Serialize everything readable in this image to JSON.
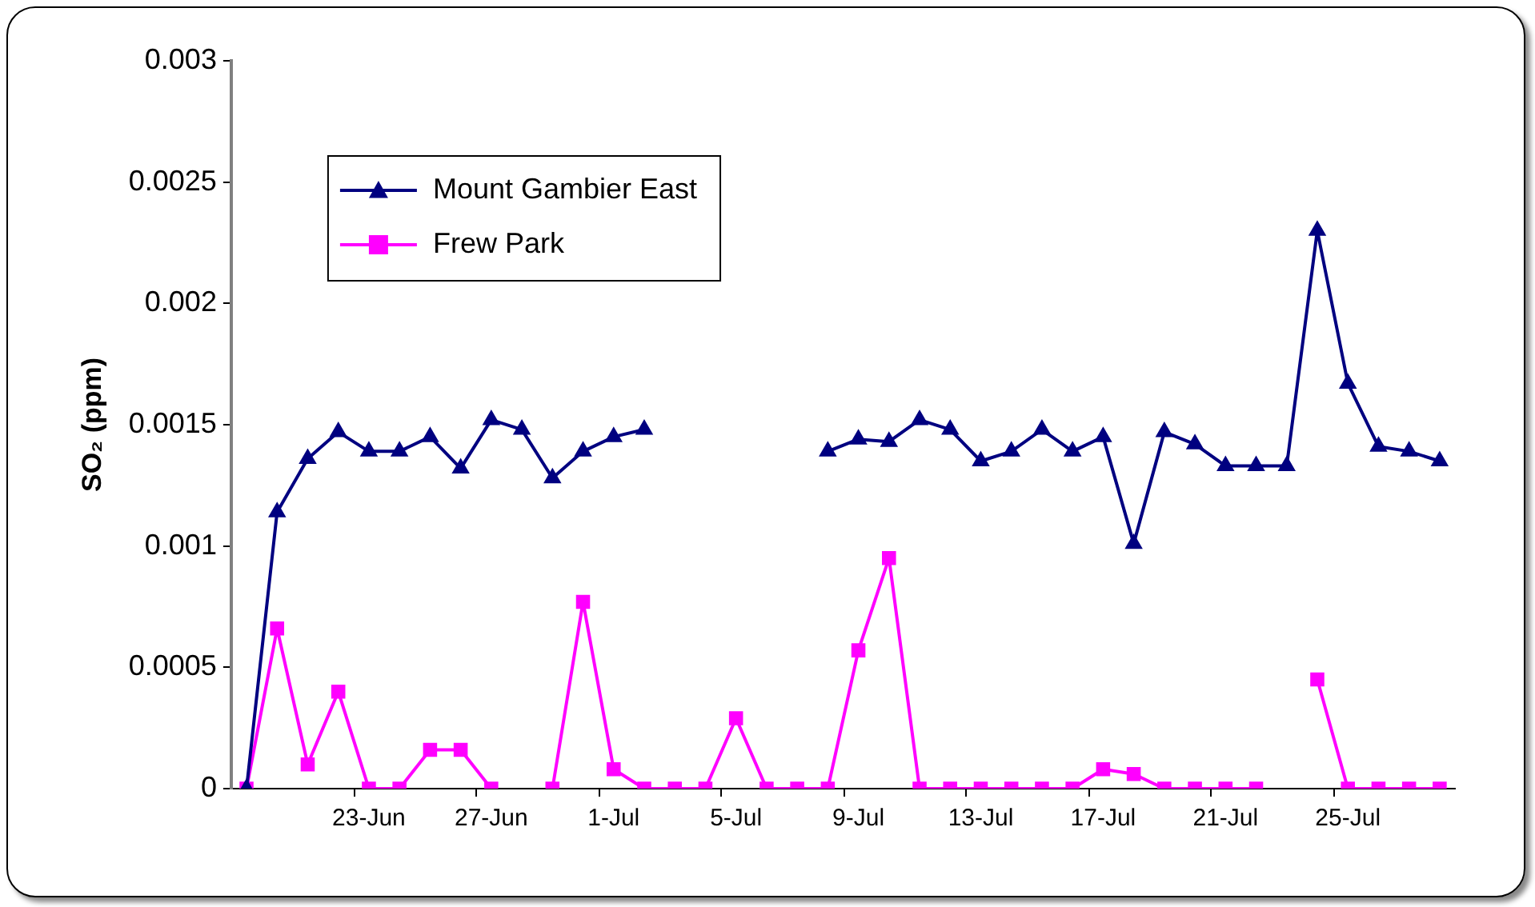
{
  "chart_data": {
    "type": "line",
    "ylabel": "SO₂ (ppm)",
    "categories": [
      null,
      null,
      null,
      null,
      "23-Jun",
      null,
      null,
      null,
      "27-Jun",
      null,
      null,
      null,
      "1-Jul",
      null,
      null,
      null,
      "5-Jul",
      null,
      null,
      null,
      "9-Jul",
      null,
      null,
      null,
      "13-Jul",
      null,
      null,
      null,
      "17-Jul",
      null,
      null,
      null,
      "21-Jul",
      null,
      null,
      null,
      "25-Jul",
      null,
      null,
      null
    ],
    "series": [
      {
        "name": "Mount Gambier East",
        "color": "#000080",
        "marker": "triangle",
        "values": [
          0,
          0.00114,
          0.00136,
          0.00147,
          0.00139,
          0.00139,
          0.00145,
          0.00132,
          0.00152,
          0.00148,
          0.00128,
          0.00139,
          0.00145,
          0.00148,
          null,
          null,
          null,
          null,
          null,
          0.00139,
          0.00144,
          0.00143,
          0.00152,
          0.00148,
          0.00135,
          0.00139,
          0.00148,
          0.00139,
          0.00145,
          0.00101,
          0.00147,
          0.00142,
          0.00133,
          0.00133,
          0.00133,
          0.0023,
          0.00167,
          0.00141,
          0.00139,
          0.00135
        ]
      },
      {
        "name": "Frew Park",
        "color": "#ff00ff",
        "marker": "square",
        "values": [
          0,
          0.00066,
          0.0001,
          0.0004,
          0,
          0,
          0.00016,
          0.00016,
          0,
          null,
          0,
          0.00077,
          8e-05,
          0,
          0,
          0,
          0.00029,
          0,
          0,
          0,
          0.00057,
          0.00095,
          0,
          0,
          0,
          0,
          0,
          0,
          8e-05,
          6e-05,
          0,
          0,
          0,
          0,
          null,
          0.00045,
          0,
          0,
          0,
          0
        ]
      }
    ],
    "ylim": [
      0,
      0.003
    ],
    "yticks": [
      0,
      0.0005,
      0.001,
      0.0015,
      0.002,
      0.0025,
      0.003
    ],
    "legend": "top left",
    "line_style": "solid"
  }
}
